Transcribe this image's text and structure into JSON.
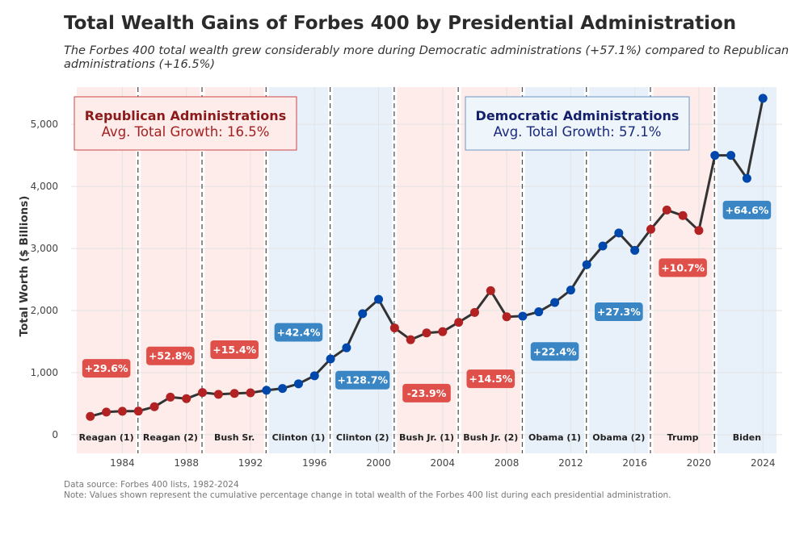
{
  "header": {
    "title": "Total Wealth Gains of Forbes 400 by Presidential Administration",
    "subtitle": "The Forbes 400 total wealth grew considerably more during Democratic administrations (+57.1%) compared to Republican administrations (+16.5%)"
  },
  "footer": {
    "source": "Data source: Forbes 400 lists, 1982-2024",
    "note": "Note: Values shown represent the cumulative percentage change in total wealth of the Forbes 400 list during each presidential administration."
  },
  "colors": {
    "republican": "#b22222",
    "democratic": "#0047ab",
    "rep_band": "#fdecea",
    "dem_band": "#e8f1fa",
    "rep_label": "#e0504a",
    "dem_label": "#3a86c4",
    "line": "#333333"
  },
  "chart_data": {
    "type": "line",
    "ylabel": "Total Worth ($ Billions)",
    "xlabel": "",
    "xlim": [
      1980.8,
      2025.2
    ],
    "ylim": [
      -300,
      5600
    ],
    "yticks": [
      0,
      1000,
      2000,
      3000,
      4000,
      5000
    ],
    "ytick_labels": [
      "0",
      "1,000",
      "2,000",
      "3,000",
      "4,000",
      "5,000"
    ],
    "xticks": [
      1984,
      1988,
      1992,
      1996,
      2000,
      2004,
      2008,
      2012,
      2016,
      2020,
      2024
    ],
    "xtick_labels": [
      "1984",
      "1988",
      "1992",
      "1996",
      "2000",
      "2004",
      "2008",
      "2012",
      "2016",
      "2020",
      "2024"
    ],
    "series": [
      {
        "name": "Total Worth",
        "x": [
          1982,
          1983,
          1984,
          1985,
          1986,
          1987,
          1988,
          1989,
          1990,
          1991,
          1992,
          1993,
          1994,
          1995,
          1996,
          1997,
          1998,
          1999,
          2000,
          2001,
          2002,
          2003,
          2004,
          2005,
          2006,
          2007,
          2008,
          2009,
          2010,
          2011,
          2012,
          2013,
          2014,
          2015,
          2016,
          2017,
          2018,
          2019,
          2020,
          2021,
          2022,
          2023,
          2024
        ],
        "y": [
          295,
          365,
          378,
          380,
          450,
          605,
          580,
          680,
          650,
          665,
          675,
          715,
          745,
          820,
          950,
          1220,
          1400,
          1950,
          2180,
          1720,
          1530,
          1640,
          1660,
          1810,
          1970,
          2320,
          1900,
          1910,
          1980,
          2130,
          2330,
          2740,
          3040,
          3250,
          2970,
          3310,
          3620,
          3530,
          3290,
          4500,
          4500,
          4130,
          5420
        ],
        "party": [
          "R",
          "R",
          "R",
          "R",
          "R",
          "R",
          "R",
          "R",
          "R",
          "R",
          "R",
          "D",
          "D",
          "D",
          "D",
          "D",
          "D",
          "D",
          "D",
          "R",
          "R",
          "R",
          "R",
          "R",
          "R",
          "R",
          "R",
          "D",
          "D",
          "D",
          "D",
          "D",
          "D",
          "D",
          "D",
          "R",
          "R",
          "R",
          "R",
          "D",
          "D",
          "D",
          "D"
        ]
      }
    ],
    "administrations": [
      {
        "name": "Reagan (1)",
        "start": 1981,
        "end": 1985,
        "party": "R",
        "change": "+29.6%",
        "label_y": 1070
      },
      {
        "name": "Reagan (2)",
        "start": 1985,
        "end": 1989,
        "party": "R",
        "change": "+52.8%",
        "label_y": 1270
      },
      {
        "name": "Bush Sr.",
        "start": 1989,
        "end": 1993,
        "party": "R",
        "change": "+15.4%",
        "label_y": 1370
      },
      {
        "name": "Clinton (1)",
        "start": 1993,
        "end": 1997,
        "party": "D",
        "change": "+42.4%",
        "label_y": 1650
      },
      {
        "name": "Clinton (2)",
        "start": 1997,
        "end": 2001,
        "party": "D",
        "change": "+128.7%",
        "label_y": 880
      },
      {
        "name": "Bush Jr. (1)",
        "start": 2001,
        "end": 2005,
        "party": "R",
        "change": "-23.9%",
        "label_y": 670
      },
      {
        "name": "Bush Jr. (2)",
        "start": 2005,
        "end": 2009,
        "party": "R",
        "change": "+14.5%",
        "label_y": 900
      },
      {
        "name": "Obama (1)",
        "start": 2009,
        "end": 2013,
        "party": "D",
        "change": "+22.4%",
        "label_y": 1340
      },
      {
        "name": "Obama (2)",
        "start": 2013,
        "end": 2017,
        "party": "D",
        "change": "+27.3%",
        "label_y": 1980
      },
      {
        "name": "Trump",
        "start": 2017,
        "end": 2021,
        "party": "R",
        "change": "+10.7%",
        "label_y": 2690
      },
      {
        "name": "Biden",
        "start": 2021,
        "end": 2025,
        "party": "D",
        "change": "+64.6%",
        "label_y": 3620
      }
    ],
    "summary_boxes": [
      {
        "party": "R",
        "heading": "Republican Administrations",
        "value": "Avg. Total Growth: 16.5%"
      },
      {
        "party": "D",
        "heading": "Democratic Administrations",
        "value": "Avg. Total Growth: 57.1%"
      }
    ]
  }
}
